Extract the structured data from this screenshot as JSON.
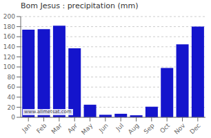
{
  "chart_data": {
    "type": "bar",
    "title": "Bom Jesus : precipitation (mm)",
    "categories": [
      "Jan",
      "Feb",
      "Mar",
      "Apr",
      "May",
      "Jun",
      "Jul",
      "Aug",
      "Sep",
      "Oct",
      "Nov",
      "Dec"
    ],
    "values": [
      174,
      175,
      182,
      137,
      25,
      5,
      7,
      4,
      21,
      98,
      145,
      180
    ],
    "color": "#1414cc",
    "ylim": [
      0,
      200
    ],
    "yticks": [
      0,
      20,
      40,
      60,
      80,
      100,
      120,
      140,
      160,
      180,
      200
    ],
    "grid": true,
    "annotations": [
      "www.allmetsat.com"
    ]
  }
}
